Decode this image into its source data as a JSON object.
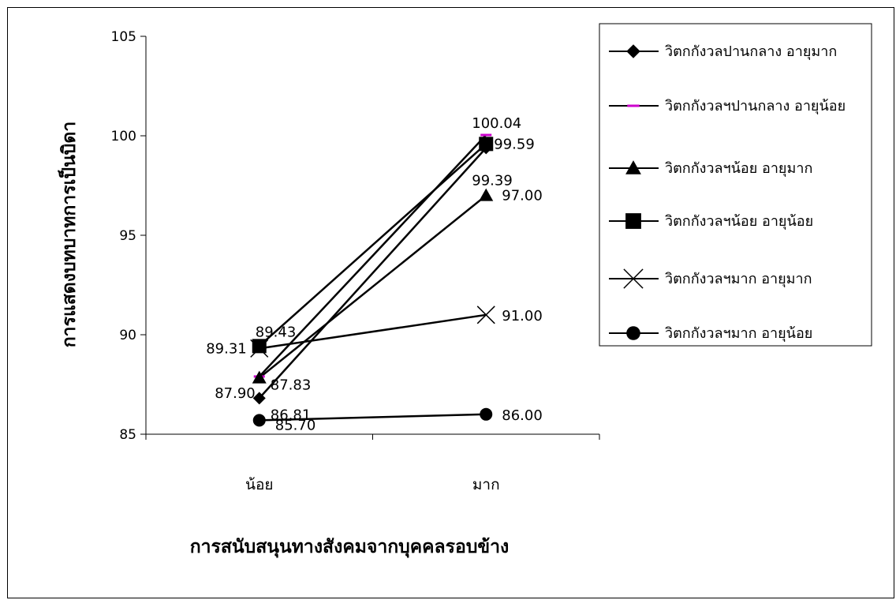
{
  "chart_data": {
    "type": "line",
    "categories": [
      "น้อย",
      "มาก"
    ],
    "xlabel": "การสนับสนุนทางสังคมจากบุคคลรอบข้าง",
    "ylabel": "การแสดงบทบาทการเป็นบิดา",
    "ylim": [
      85,
      105
    ],
    "yticks": [
      "85",
      "90",
      "95",
      "100",
      "105"
    ],
    "grid": false,
    "legend": "right",
    "series": [
      {
        "name": "วิตกกังวลปานกลาง อายุมาก",
        "marker": "diamond",
        "color": "#000000",
        "values": [
          86.81,
          99.39
        ],
        "labels": [
          "86.81",
          "99.39"
        ]
      },
      {
        "name": "วิตกกังวลฯปานกลาง อายุน้อย",
        "marker": "dash",
        "color": "#cc00cc",
        "values": [
          87.9,
          100.04
        ],
        "labels": [
          "87.90",
          "100.04"
        ]
      },
      {
        "name": "วิตกกังวลฯน้อย  อายุมาก",
        "marker": "triangle",
        "color": "#000000",
        "values": [
          87.83,
          97.0
        ],
        "labels": [
          "87.83",
          "97.00"
        ]
      },
      {
        "name": "วิตกกังวลฯน้อย  อายุน้อย",
        "marker": "square",
        "color": "#000000",
        "values": [
          89.43,
          99.59
        ],
        "labels": [
          "89.43",
          "99.59"
        ]
      },
      {
        "name": "วิตกกังวลฯมาก อายุมาก",
        "marker": "x",
        "color": "#000000",
        "values": [
          89.31,
          91.0
        ],
        "labels": [
          "89.31",
          "91.00"
        ]
      },
      {
        "name": "วิตกกังวลฯมาก อายุน้อย",
        "marker": "circle",
        "color": "#000000",
        "values": [
          85.7,
          86.0
        ],
        "labels": [
          "85.70",
          "86.00"
        ]
      }
    ]
  }
}
